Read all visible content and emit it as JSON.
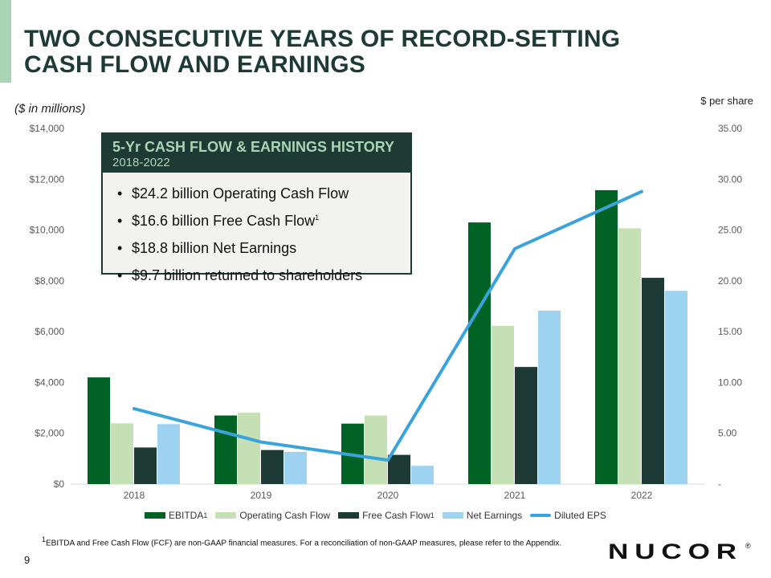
{
  "slide": {
    "title_line1": "TWO CONSECUTIVE YEARS OF RECORD-SETTING",
    "title_line2": "CASH FLOW AND EARNINGS",
    "units_left": "($ in millions)",
    "units_right": "$ per share",
    "page_number": "9",
    "footnote_mark": "1",
    "footnote_text": "EBITDA and Free Cash Flow (FCF) are non-GAAP financial measures.  For a reconciliation of non-GAAP measures, please refer to the Appendix.",
    "logo_text": "NUCOR",
    "logo_mark": "®"
  },
  "callout": {
    "title": "5-Yr CASH FLOW & EARNINGS HISTORY",
    "subtitle": "2018-2022",
    "bullets": [
      {
        "text": "$24.2 billion Operating Cash Flow",
        "sup": ""
      },
      {
        "text": "$16.6 billion Free Cash Flow",
        "sup": "1"
      },
      {
        "text": "$18.8 billion Net Earnings",
        "sup": ""
      },
      {
        "text": "$9.7 billion returned to shareholders",
        "sup": ""
      }
    ]
  },
  "chart_data": {
    "type": "bar",
    "categories": [
      "2018",
      "2019",
      "2020",
      "2021",
      "2022"
    ],
    "y_left": {
      "min": 0,
      "max": 14000,
      "step": 2000,
      "tick_labels": [
        "$0",
        "$2,000",
        "$4,000",
        "$6,000",
        "$8,000",
        "$10,000",
        "$12,000",
        "$14,000"
      ]
    },
    "y_right": {
      "min": 0,
      "max": 35,
      "step": 5,
      "tick_labels": [
        "-",
        "5.00",
        "10.00",
        "15.00",
        "20.00",
        "25.00",
        "30.00",
        "35.00"
      ]
    },
    "series": [
      {
        "name": "EBITDA",
        "sup": "1",
        "color": "#006325",
        "values": [
          4200,
          2700,
          2380,
          10300,
          11570
        ]
      },
      {
        "name": "Operating Cash Flow",
        "sup": "",
        "color": "#c5e0b4",
        "values": [
          2390,
          2810,
          2700,
          6230,
          10070
        ]
      },
      {
        "name": "Free Cash Flow",
        "sup": "1",
        "color": "#1e3a35",
        "values": [
          1440,
          1340,
          1150,
          4610,
          8120
        ]
      },
      {
        "name": "Net Earnings",
        "sup": "",
        "color": "#9dd3f0",
        "values": [
          2360,
          1270,
          720,
          6830,
          7610
        ]
      }
    ],
    "line_series": {
      "name": "Diluted EPS",
      "color": "#3aa3d9",
      "axis": "right",
      "values": [
        7.42,
        4.14,
        2.36,
        23.16,
        28.79
      ]
    },
    "grid": false,
    "legend_position": "bottom"
  }
}
